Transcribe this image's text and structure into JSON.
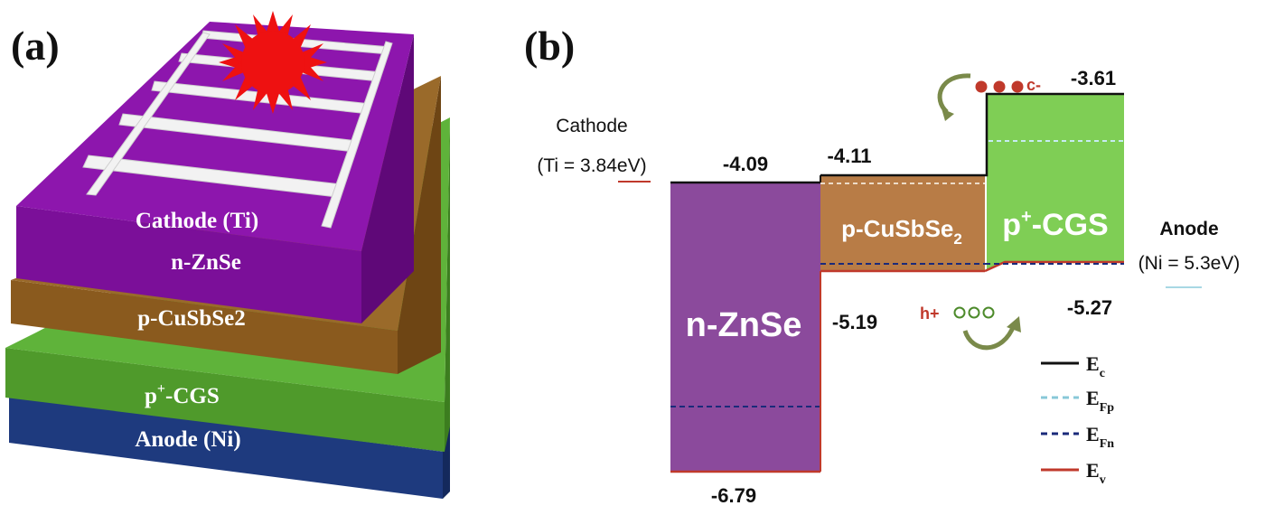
{
  "panel_a": {
    "label": "(a)",
    "layers": [
      {
        "name": "Cathode (Ti)",
        "color": "#7b0f99"
      },
      {
        "name": "n-ZnSe",
        "color": "#7b0f99"
      },
      {
        "name": "p-CuSbSe2",
        "color": "#8a5a1e"
      },
      {
        "name": "p+-CGS",
        "color": "#4c9a2a"
      },
      {
        "name": "Anode (Ni)",
        "color": "#1f3f86"
      }
    ],
    "layer_labels": {
      "cathode": "Cathode (Ti)",
      "znse": "n-ZnSe",
      "cusbse": "p-CuSbSe2",
      "cgs_prefix": "p",
      "cgs_sup": "+",
      "cgs_suffix": "-CGS",
      "anode": "Anode (Ni)"
    },
    "sun_color": "#ee1111"
  },
  "panel_b": {
    "label": "(b)",
    "cathode": {
      "line1": "Cathode",
      "line2": "(Ti = 3.84eV)"
    },
    "anode": {
      "line1": "Anode",
      "line2": "(Ni = 5.3eV)"
    },
    "bands": {
      "znse": {
        "name": "n-ZnSe",
        "ec": "-4.09",
        "ev": "-6.79",
        "color": "#8b4a9c"
      },
      "cusbse": {
        "name_main": "p-CuSbSe",
        "name_sub": "2",
        "ec": "-4.11",
        "ev": "-5.19",
        "color": "#b87c46"
      },
      "cgs": {
        "name_main": "p",
        "name_sup": "+",
        "name_rest": "-CGS",
        "ec": "-3.61",
        "ev": "-5.27",
        "color": "#7fce55"
      }
    },
    "carriers": {
      "electron": "c-",
      "hole": "h+"
    },
    "legend": [
      {
        "main": "E",
        "sub": "c",
        "style": "solid",
        "color": "#111111"
      },
      {
        "main": "E",
        "sub": "Fp",
        "style": "dash",
        "color": "#88c8d8"
      },
      {
        "main": "E",
        "sub": "Fn",
        "style": "dash",
        "color": "#1a2a7a"
      },
      {
        "main": "E",
        "sub": "v",
        "style": "solid",
        "color": "#c0392b"
      }
    ]
  }
}
